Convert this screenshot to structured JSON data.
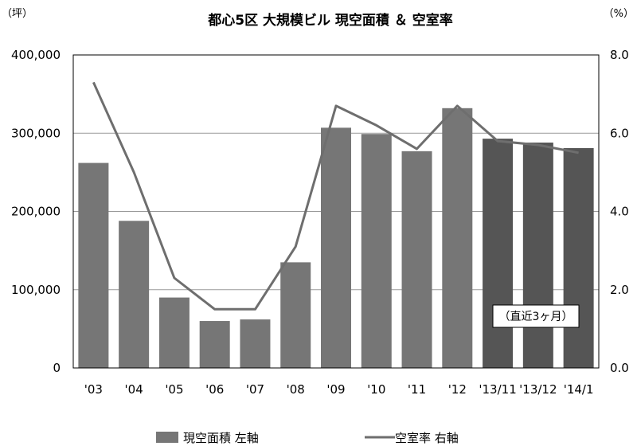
{
  "chart_data": {
    "type": "bar",
    "title": "都心5区 大規模ビル 現空面積 ＆ 空室率",
    "left_unit": "（坪）",
    "right_unit": "（%）",
    "categories": [
      "'03",
      "'04",
      "'05",
      "'06",
      "'07",
      "'08",
      "'09",
      "'10",
      "'11",
      "'12",
      "'13/11",
      "'13/12",
      "'14/1"
    ],
    "series": [
      {
        "name": "現空面積 左軸",
        "type": "bar",
        "axis": "left",
        "values": [
          262000,
          188000,
          90000,
          60000,
          62000,
          135000,
          307000,
          299000,
          277000,
          332000,
          293000,
          288000,
          281000
        ],
        "color": "#767676",
        "recent_color": "#555555"
      },
      {
        "name": "空室率 右軸",
        "type": "line",
        "axis": "right",
        "values": [
          7.3,
          5.0,
          2.3,
          1.5,
          1.5,
          3.1,
          6.7,
          6.2,
          5.6,
          6.7,
          5.8,
          5.7,
          5.5
        ],
        "color": "#6e6e6e"
      }
    ],
    "ylim_left": [
      0,
      400000
    ],
    "ylim_right": [
      0,
      8.0
    ],
    "left_ticks": [
      0,
      100000,
      200000,
      300000,
      400000
    ],
    "left_tick_labels": [
      "0",
      "100,000",
      "200,000",
      "300,000",
      "400,000"
    ],
    "right_ticks": [
      0,
      2,
      4,
      6,
      8
    ],
    "right_tick_labels": [
      "0.0",
      "2.0",
      "4.0",
      "6.0",
      "8.0"
    ],
    "recent_start_index": 10,
    "annotation": "（直近3ヶ月）",
    "grid": true,
    "legend_position": "bottom"
  }
}
